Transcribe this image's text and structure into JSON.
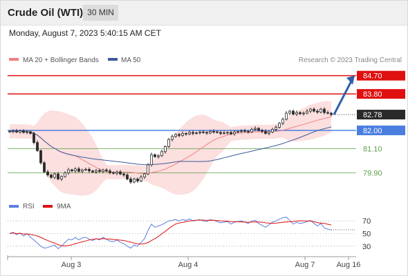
{
  "header": {
    "title": "Crude Oil (WTI)",
    "timeframe": "30 MIN",
    "datetime": "Monday, August 7, 2023 5:40:15 AM CET"
  },
  "legend": {
    "ma20_label": "MA 20 + Bollinger Bands",
    "ma50_label": "MA 50",
    "rsi_label": "RSI",
    "ma9_label": "9MA"
  },
  "credit": "Research © 2023 Trading Central",
  "colors": {
    "resistance": "#e01010",
    "pivot": "#4a7fe0",
    "support": "#5a9e46",
    "ma20": "#f08080",
    "ma50": "#3b5a9a",
    "bollinger_fill": "#fcdcdc",
    "candle": "#2a2a2a",
    "arrow": "#2f5fa8",
    "rsi": "#5a7fe0",
    "rsi_ma": "#e01010",
    "last_price": "#2a2a2a"
  },
  "chart_data": [
    {
      "type": "candlestick",
      "title": "Crude Oil (WTI)",
      "timeframe": "30 MIN",
      "x_tick_labels": [
        "Aug 3",
        "Aug 4",
        "Aug 7",
        "Aug 16"
      ],
      "ylim": [
        78.9,
        85.2
      ],
      "last_price": 82.78,
      "levels": [
        {
          "value": 84.7,
          "label": "84.70",
          "role": "resistance",
          "style": "box"
        },
        {
          "value": 83.8,
          "label": "83.80",
          "role": "resistance",
          "style": "box"
        },
        {
          "value": 82.0,
          "label": "82.00",
          "role": "pivot",
          "style": "box"
        },
        {
          "value": 81.1,
          "label": "81.10",
          "role": "support",
          "style": "text"
        },
        {
          "value": 79.9,
          "label": "79.90",
          "role": "support",
          "style": "text"
        }
      ],
      "last_price_label": "82.78",
      "target_value": 84.7,
      "close_series": [
        81.95,
        81.97,
        81.92,
        81.98,
        81.9,
        81.93,
        81.85,
        81.4,
        81.0,
        80.4,
        79.95,
        79.8,
        79.68,
        79.85,
        79.6,
        79.72,
        79.9,
        80.05,
        80.0,
        80.1,
        79.98,
        80.05,
        80.08,
        80.0,
        79.95,
        80.02,
        79.97,
        80.05,
        80.0,
        79.92,
        79.88,
        79.95,
        79.85,
        79.8,
        79.6,
        79.45,
        79.6,
        79.5,
        79.7,
        79.85,
        80.3,
        80.8,
        80.7,
        80.75,
        80.95,
        81.2,
        81.55,
        81.7,
        81.8,
        81.75,
        81.85,
        81.82,
        81.9,
        81.85,
        81.88,
        81.92,
        81.9,
        81.87,
        81.95,
        81.93,
        81.9,
        81.85,
        81.88,
        81.9,
        81.83,
        81.92,
        81.95,
        81.98,
        81.95,
        81.93,
        82.05,
        82.1,
        82.0,
        81.95,
        81.85,
        81.92,
        82.05,
        82.15,
        82.35,
        82.55,
        82.85,
        82.95,
        82.8,
        82.88,
        82.82,
        82.85,
        82.95,
        83.05,
        82.95,
        82.9,
        83.05,
        82.88,
        82.85,
        82.78
      ],
      "series": [
        {
          "name": "MA 20 + Bollinger Bands"
        },
        {
          "name": "MA 50"
        }
      ]
    },
    {
      "type": "line",
      "ylim": [
        20,
        80
      ],
      "y_tick_labels": [
        "70",
        "50",
        "30"
      ],
      "y_ticks": [
        70,
        50,
        30
      ],
      "series": [
        {
          "name": "RSI",
          "values": [
            50,
            52,
            48,
            51,
            46,
            50,
            44,
            40,
            35,
            30,
            27,
            28,
            30,
            32,
            26,
            30,
            36,
            41,
            40,
            44,
            40,
            43,
            44,
            41,
            39,
            42,
            40,
            44,
            41,
            38,
            37,
            40,
            36,
            34,
            30,
            27,
            32,
            30,
            36,
            42,
            55,
            65,
            60,
            62,
            64,
            67,
            70,
            71,
            72,
            70,
            72,
            71,
            73,
            70,
            71,
            72,
            70,
            69,
            72,
            71,
            69,
            67,
            68,
            69,
            65,
            68,
            69,
            70,
            68,
            66,
            70,
            71,
            66,
            63,
            60,
            64,
            68,
            70,
            73,
            75,
            76,
            71,
            65,
            68,
            66,
            67,
            69,
            71,
            66,
            62,
            66,
            59,
            57,
            56
          ]
        },
        {
          "name": "9MA"
        }
      ]
    }
  ]
}
